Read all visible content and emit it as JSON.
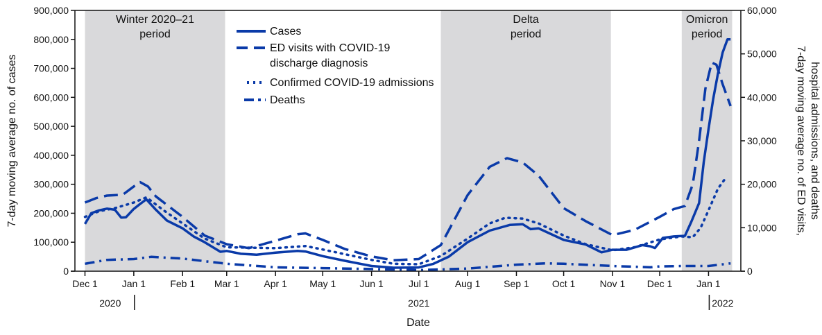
{
  "chart_data": {
    "type": "line",
    "xlabel": "Date",
    "ylabel_left": "7-day moving average no. of cases",
    "ylabel_right": [
      "7-day moving average no. of ED visits,",
      "hospital admissions, and deaths"
    ],
    "ylim_left": [
      0,
      900000
    ],
    "ylim_right": [
      0,
      60000
    ],
    "yticks_left": [
      "0",
      "100,000",
      "200,000",
      "300,000",
      "400,000",
      "500,000",
      "600,000",
      "700,000",
      "800,000",
      "900,000"
    ],
    "yticks_right": [
      "0",
      "10,000",
      "20,000",
      "30,000",
      "40,000",
      "50,000",
      "60,000"
    ],
    "xlim": [
      "2020-11-26",
      "2022-01-20"
    ],
    "xticks": [
      {
        "date": "2020-12-01",
        "label": "Dec 1"
      },
      {
        "date": "2021-01-01",
        "label": "Jan 1"
      },
      {
        "date": "2021-02-01",
        "label": "Feb 1"
      },
      {
        "date": "2021-03-01",
        "label": "Mar 1"
      },
      {
        "date": "2021-04-01",
        "label": "Apr 1"
      },
      {
        "date": "2021-05-01",
        "label": "May 1"
      },
      {
        "date": "2021-06-01",
        "label": "Jun 1"
      },
      {
        "date": "2021-07-01",
        "label": "Jul 1"
      },
      {
        "date": "2021-08-01",
        "label": "Aug 1"
      },
      {
        "date": "2021-09-01",
        "label": "Sep 1"
      },
      {
        "date": "2021-10-01",
        "label": "Oct 1"
      },
      {
        "date": "2021-11-01",
        "label": "Nov 1"
      },
      {
        "date": "2021-12-01",
        "label": "Dec 1"
      },
      {
        "date": "2022-01-01",
        "label": "Jan 1"
      }
    ],
    "years": [
      {
        "label": "2020",
        "position": "2020-12-17"
      },
      {
        "label": "2021",
        "position": "2021-07-01"
      },
      {
        "label": "2022",
        "position": "2022-01-10"
      }
    ],
    "year_separators": [
      "2021-01-01",
      "2022-01-01"
    ],
    "grid": false,
    "legend_placement": "top-center",
    "periods": [
      {
        "label": [
          "Winter 2020–21",
          "period"
        ],
        "start": "2020-12-01",
        "end": "2021-02-28"
      },
      {
        "label": [
          "Delta",
          "period"
        ],
        "start": "2021-07-15",
        "end": "2021-10-31"
      },
      {
        "label": [
          "Omicron",
          "period"
        ],
        "start": "2021-12-15",
        "end": "2022-01-16"
      }
    ],
    "series": [
      {
        "name": "Cases",
        "axis": "left",
        "style": "solid",
        "color": "#0a3aa8",
        "points": [
          [
            "2020-12-01",
            163000
          ],
          [
            "2020-12-05",
            200000
          ],
          [
            "2020-12-10",
            210000
          ],
          [
            "2020-12-15",
            216000
          ],
          [
            "2020-12-20",
            212000
          ],
          [
            "2020-12-24",
            185000
          ],
          [
            "2020-12-27",
            186000
          ],
          [
            "2021-01-01",
            215000
          ],
          [
            "2021-01-05",
            232000
          ],
          [
            "2021-01-09",
            248000
          ],
          [
            "2021-01-15",
            212000
          ],
          [
            "2021-01-22",
            175000
          ],
          [
            "2021-02-01",
            148000
          ],
          [
            "2021-02-08",
            120000
          ],
          [
            "2021-02-15",
            100000
          ],
          [
            "2021-02-25",
            67000
          ],
          [
            "2021-03-01",
            70000
          ],
          [
            "2021-03-10",
            60000
          ],
          [
            "2021-03-20",
            57000
          ],
          [
            "2021-04-01",
            64000
          ],
          [
            "2021-04-15",
            70000
          ],
          [
            "2021-04-20",
            68000
          ],
          [
            "2021-05-01",
            52000
          ],
          [
            "2021-05-15",
            36000
          ],
          [
            "2021-06-01",
            18000
          ],
          [
            "2021-06-15",
            12000
          ],
          [
            "2021-07-01",
            13000
          ],
          [
            "2021-07-10",
            25000
          ],
          [
            "2021-07-20",
            50000
          ],
          [
            "2021-08-01",
            100000
          ],
          [
            "2021-08-15",
            140000
          ],
          [
            "2021-08-28",
            160000
          ],
          [
            "2021-09-05",
            162000
          ],
          [
            "2021-09-10",
            145000
          ],
          [
            "2021-09-15",
            148000
          ],
          [
            "2021-10-01",
            108000
          ],
          [
            "2021-10-15",
            92000
          ],
          [
            "2021-10-25",
            65000
          ],
          [
            "2021-11-01",
            74000
          ],
          [
            "2021-11-10",
            74000
          ],
          [
            "2021-11-20",
            90000
          ],
          [
            "2021-11-25",
            86000
          ],
          [
            "2021-11-28",
            80000
          ],
          [
            "2021-12-03",
            115000
          ],
          [
            "2021-12-10",
            120000
          ],
          [
            "2021-12-17",
            122000
          ],
          [
            "2021-12-21",
            170000
          ],
          [
            "2021-12-26",
            235000
          ],
          [
            "2021-12-29",
            378000
          ],
          [
            "2022-01-01",
            490000
          ],
          [
            "2022-01-04",
            595000
          ],
          [
            "2022-01-07",
            682000
          ],
          [
            "2022-01-10",
            755000
          ],
          [
            "2022-01-13",
            800000
          ],
          [
            "2022-01-15",
            800000
          ]
        ]
      },
      {
        "name": "ED visits with COVID-19 discharge diagnosis",
        "axis": "right",
        "style": "dashed",
        "color": "#0a3aa8",
        "points": [
          [
            "2020-12-01",
            15800
          ],
          [
            "2020-12-08",
            16800
          ],
          [
            "2020-12-15",
            17400
          ],
          [
            "2020-12-25",
            17600
          ],
          [
            "2021-01-01",
            19500
          ],
          [
            "2021-01-05",
            20500
          ],
          [
            "2021-01-10",
            19500
          ],
          [
            "2021-01-15",
            17200
          ],
          [
            "2021-02-01",
            12500
          ],
          [
            "2021-02-15",
            8200
          ],
          [
            "2021-03-01",
            6200
          ],
          [
            "2021-03-15",
            5300
          ],
          [
            "2021-04-01",
            7000
          ],
          [
            "2021-04-15",
            8500
          ],
          [
            "2021-04-20",
            8700
          ],
          [
            "2021-05-01",
            7200
          ],
          [
            "2021-05-15",
            5100
          ],
          [
            "2021-06-01",
            3400
          ],
          [
            "2021-06-15",
            2500
          ],
          [
            "2021-07-01",
            2800
          ],
          [
            "2021-07-15",
            6000
          ],
          [
            "2021-08-01",
            17500
          ],
          [
            "2021-08-15",
            24000
          ],
          [
            "2021-08-26",
            26000
          ],
          [
            "2021-09-05",
            25000
          ],
          [
            "2021-09-15",
            22000
          ],
          [
            "2021-10-01",
            14500
          ],
          [
            "2021-10-15",
            11500
          ],
          [
            "2021-11-01",
            8300
          ],
          [
            "2021-11-15",
            9500
          ],
          [
            "2021-12-01",
            12500
          ],
          [
            "2021-12-10",
            14300
          ],
          [
            "2021-12-17",
            15000
          ],
          [
            "2021-12-22",
            20000
          ],
          [
            "2021-12-26",
            30000
          ],
          [
            "2021-12-30",
            42000
          ],
          [
            "2022-01-03",
            48000
          ],
          [
            "2022-01-06",
            47500
          ],
          [
            "2022-01-10",
            43000
          ],
          [
            "2022-01-15",
            38000
          ]
        ]
      },
      {
        "name": "Confirmed COVID-19 admissions",
        "axis": "right",
        "style": "dotted",
        "color": "#0a3aa8",
        "points": [
          [
            "2020-12-01",
            12500
          ],
          [
            "2020-12-10",
            13800
          ],
          [
            "2020-12-20",
            14500
          ],
          [
            "2021-01-01",
            15800
          ],
          [
            "2021-01-09",
            17000
          ],
          [
            "2021-01-20",
            14000
          ],
          [
            "2021-02-01",
            11000
          ],
          [
            "2021-02-15",
            7500
          ],
          [
            "2021-03-01",
            5500
          ],
          [
            "2021-04-01",
            5300
          ],
          [
            "2021-04-20",
            5800
          ],
          [
            "2021-05-01",
            5000
          ],
          [
            "2021-06-01",
            2600
          ],
          [
            "2021-06-15",
            1700
          ],
          [
            "2021-07-01",
            1600
          ],
          [
            "2021-07-15",
            3500
          ],
          [
            "2021-08-01",
            7500
          ],
          [
            "2021-08-15",
            11000
          ],
          [
            "2021-08-25",
            12300
          ],
          [
            "2021-09-05",
            12100
          ],
          [
            "2021-09-15",
            11000
          ],
          [
            "2021-10-01",
            8200
          ],
          [
            "2021-10-15",
            6200
          ],
          [
            "2021-11-01",
            4800
          ],
          [
            "2021-11-15",
            5500
          ],
          [
            "2021-12-01",
            7300
          ],
          [
            "2021-12-15",
            8000
          ],
          [
            "2021-12-22",
            7800
          ],
          [
            "2021-12-27",
            10000
          ],
          [
            "2022-01-01",
            14000
          ],
          [
            "2022-01-07",
            19000
          ],
          [
            "2022-01-12",
            21500
          ]
        ]
      },
      {
        "name": "Deaths",
        "axis": "right",
        "style": "dash-dot",
        "color": "#0a3aa8",
        "points": [
          [
            "2020-12-01",
            1700
          ],
          [
            "2020-12-15",
            2600
          ],
          [
            "2021-01-01",
            2800
          ],
          [
            "2021-01-12",
            3300
          ],
          [
            "2021-02-01",
            2900
          ],
          [
            "2021-02-15",
            2300
          ],
          [
            "2021-03-01",
            1700
          ],
          [
            "2021-04-01",
            900
          ],
          [
            "2021-05-01",
            700
          ],
          [
            "2021-06-01",
            500
          ],
          [
            "2021-07-01",
            250
          ],
          [
            "2021-08-01",
            600
          ],
          [
            "2021-09-01",
            1500
          ],
          [
            "2021-09-20",
            1800
          ],
          [
            "2021-10-01",
            1700
          ],
          [
            "2021-11-01",
            1200
          ],
          [
            "2021-11-25",
            900
          ],
          [
            "2021-12-01",
            1100
          ],
          [
            "2021-12-15",
            1200
          ],
          [
            "2022-01-01",
            1200
          ],
          [
            "2022-01-15",
            1800
          ]
        ]
      }
    ]
  }
}
